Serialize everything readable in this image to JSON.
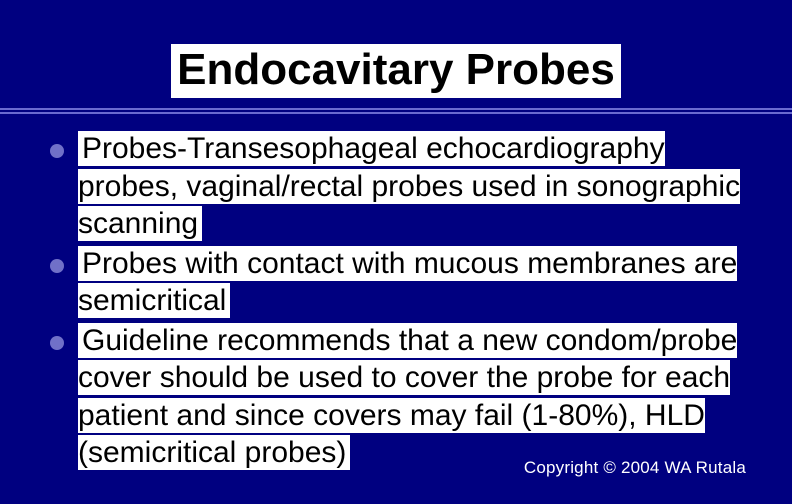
{
  "slide": {
    "title": "Endocavitary Probes",
    "title_fontsize": 44,
    "title_color": "#000000",
    "title_bg": "#ffffff",
    "background_color": "#000080",
    "divider_color": "#6a6ad0",
    "bullets": [
      "Probes-Transesophageal echocardiography probes, vaginal/rectal probes used in sonographic scanning",
      "Probes with contact with mucous membranes are semicritical",
      "Guideline recommends that a new condom/probe cover should be used to cover the probe for each patient and since covers may fail (1-80%), HLD (semicritical probes)"
    ],
    "bullet_fontsize": 30,
    "bullet_text_color": "#000000",
    "bullet_text_bg": "#ffffff",
    "bullet_marker_color": "#7070c8",
    "copyright": "Copyright © 2004 WA Rutala",
    "copyright_fontsize": 17,
    "copyright_color": "#ffffff"
  }
}
